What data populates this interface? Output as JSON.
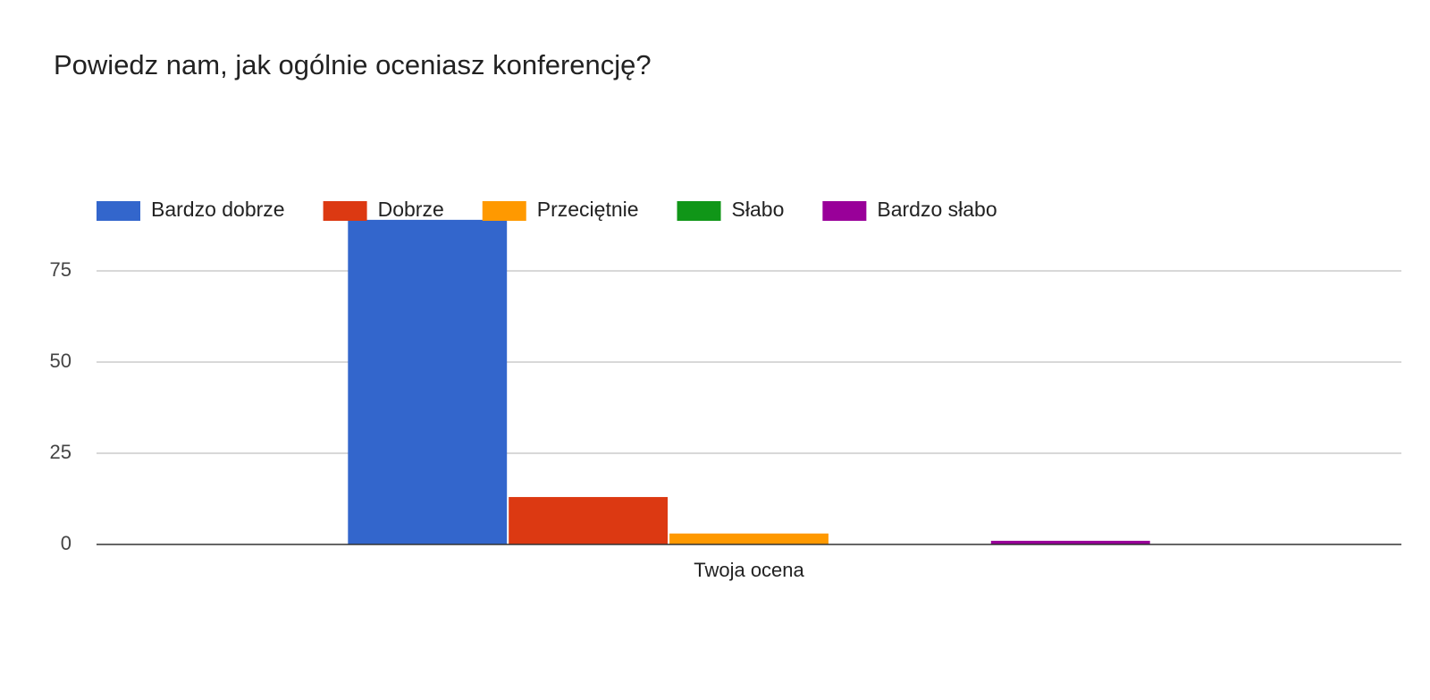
{
  "chart_data": {
    "type": "bar",
    "title": "Powiedz nam, jak ogólnie oceniasz konferencję?",
    "categories": [
      "Twoja ocena"
    ],
    "series": [
      {
        "name": "Bardzo dobrze",
        "color": "#3366cc",
        "values": [
          89
        ]
      },
      {
        "name": "Dobrze",
        "color": "#dc3912",
        "values": [
          13
        ]
      },
      {
        "name": "Przeciętnie",
        "color": "#ff9900",
        "values": [
          3
        ]
      },
      {
        "name": "Słabo",
        "color": "#109618",
        "values": [
          0
        ]
      },
      {
        "name": "Bardzo słabo",
        "color": "#990099",
        "values": [
          1
        ]
      }
    ],
    "ylim": [
      0,
      90
    ],
    "yticks": [
      0,
      25,
      50,
      75
    ],
    "grid": true,
    "legend": "top"
  }
}
